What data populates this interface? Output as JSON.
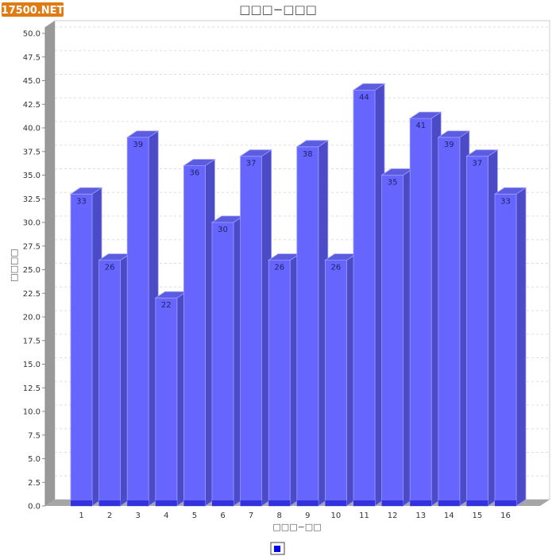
{
  "logo": {
    "text": "17500.NET"
  },
  "legend": {
    "swatch_color": "#0000ff"
  },
  "chart_data": {
    "type": "bar",
    "title": "□□□−□□□",
    "xlabel": "□□□−□□",
    "ylabel": "□□□□",
    "categories": [
      "1",
      "2",
      "3",
      "4",
      "5",
      "6",
      "7",
      "8",
      "9",
      "10",
      "11",
      "12",
      "13",
      "14",
      "15",
      "16"
    ],
    "values": [
      33,
      26,
      39,
      22,
      36,
      30,
      37,
      26,
      38,
      26,
      44,
      35,
      41,
      39,
      37,
      33
    ],
    "ylim": [
      0,
      50
    ],
    "yticks": [
      "0.0",
      "2.5",
      "5.0",
      "7.5",
      "10.0",
      "12.5",
      "15.0",
      "17.5",
      "20.0",
      "22.5",
      "25.0",
      "27.5",
      "30.0",
      "32.5",
      "35.0",
      "37.5",
      "40.0",
      "42.5",
      "45.0",
      "47.5",
      "50.0"
    ],
    "grid": true,
    "legend": "bottom",
    "colors": {
      "bar_front": "#6666ff",
      "bar_top": "#5c5ce0",
      "bar_side": "#4b4bc8",
      "bar_base": "#3333dd"
    }
  }
}
